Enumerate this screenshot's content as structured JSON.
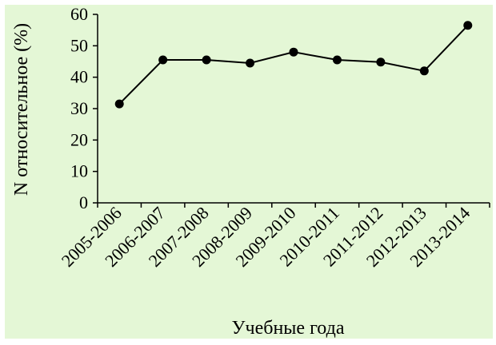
{
  "colors": {
    "background": "#e4f7d6",
    "line": "#000000",
    "marker": "#000000"
  },
  "chart_data": {
    "type": "line",
    "categories": [
      "2005-2006",
      "2006-2007",
      "2007-2008",
      "2008-2009",
      "2009-2010",
      "2010-2011",
      "2011-2012",
      "2012-2013",
      "2013-2014"
    ],
    "series": [
      {
        "values": [
          31.5,
          45.5,
          45.5,
          44.5,
          48,
          45.5,
          44.8,
          42,
          56.5
        ]
      }
    ],
    "xlabel": "Учебные года",
    "ylabel": "N относительное (%)",
    "ylim": [
      0,
      60
    ],
    "yticks": [
      0,
      10,
      20,
      30,
      40,
      50,
      60
    ],
    "grid": false,
    "legend": "none"
  }
}
